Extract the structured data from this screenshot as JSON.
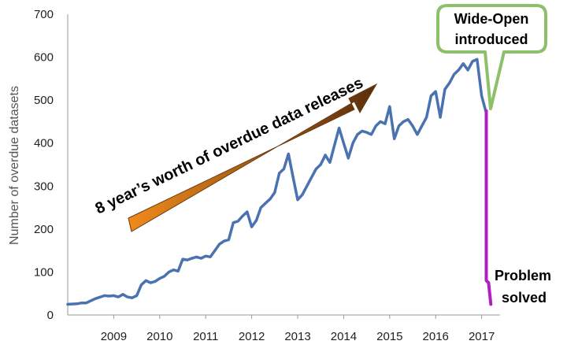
{
  "chart_data": {
    "type": "line",
    "ylabel": "Number of overdue datasets",
    "ylim": [
      0,
      700
    ],
    "xlim": [
      2008.0,
      2017.4
    ],
    "y_ticks": [
      "0",
      "100",
      "200",
      "300",
      "400",
      "500",
      "600",
      "700"
    ],
    "x_ticks": [
      "2009",
      "2010",
      "2011",
      "2012",
      "2013",
      "2014",
      "2015",
      "2016",
      "2017"
    ],
    "series": [
      {
        "color": "#4a72b0",
        "x": [
          2008.0,
          2008.2,
          2008.3,
          2008.4,
          2008.6,
          2008.8,
          2008.9,
          2009.0,
          2009.1,
          2009.2,
          2009.3,
          2009.4,
          2009.5,
          2009.6,
          2009.7,
          2009.8,
          2009.9,
          2010.0,
          2010.1,
          2010.2,
          2010.3,
          2010.4,
          2010.5,
          2010.6,
          2010.7,
          2010.8,
          2010.9,
          2011.0,
          2011.1,
          2011.2,
          2011.3,
          2011.4,
          2011.5,
          2011.6,
          2011.7,
          2011.8,
          2011.9,
          2012.0,
          2012.1,
          2012.2,
          2012.3,
          2012.4,
          2012.5,
          2012.6,
          2012.7,
          2012.8,
          2012.9,
          2013.0,
          2013.1,
          2013.2,
          2013.3,
          2013.4,
          2013.5,
          2013.6,
          2013.7,
          2013.8,
          2013.9,
          2014.0,
          2014.1,
          2014.2,
          2014.3,
          2014.4,
          2014.5,
          2014.6,
          2014.7,
          2014.8,
          2014.9,
          2015.0,
          2015.1,
          2015.2,
          2015.3,
          2015.4,
          2015.5,
          2015.6,
          2015.7,
          2015.8,
          2015.9,
          2016.0,
          2016.1,
          2016.2,
          2016.3,
          2016.4,
          2016.5,
          2016.6,
          2016.7,
          2016.8,
          2016.9,
          2017.0,
          2017.1
        ],
        "values": [
          25,
          26,
          28,
          28,
          38,
          45,
          44,
          45,
          42,
          48,
          42,
          40,
          45,
          70,
          80,
          75,
          78,
          85,
          90,
          100,
          105,
          102,
          130,
          128,
          132,
          135,
          132,
          137,
          135,
          150,
          165,
          172,
          175,
          215,
          218,
          230,
          240,
          205,
          220,
          250,
          260,
          270,
          285,
          330,
          340,
          375,
          320,
          268,
          280,
          300,
          320,
          340,
          350,
          372,
          355,
          395,
          435,
          400,
          365,
          400,
          420,
          428,
          425,
          420,
          440,
          450,
          445,
          485,
          410,
          440,
          450,
          455,
          440,
          420,
          440,
          460,
          510,
          520,
          460,
          525,
          540,
          560,
          570,
          585,
          570,
          590,
          595,
          510,
          470
        ]
      },
      {
        "color": "#b020c0",
        "x": [
          2017.1,
          2017.1,
          2017.15,
          2017.2
        ],
        "values": [
          475,
          80,
          75,
          25
        ]
      }
    ],
    "annotations": {
      "arrow_text": "8 year’s worth of overdue data releases",
      "callout_line1": "Wide-Open",
      "callout_line2": "introduced",
      "problem_line1": "Problem",
      "problem_line2": "solved"
    }
  }
}
